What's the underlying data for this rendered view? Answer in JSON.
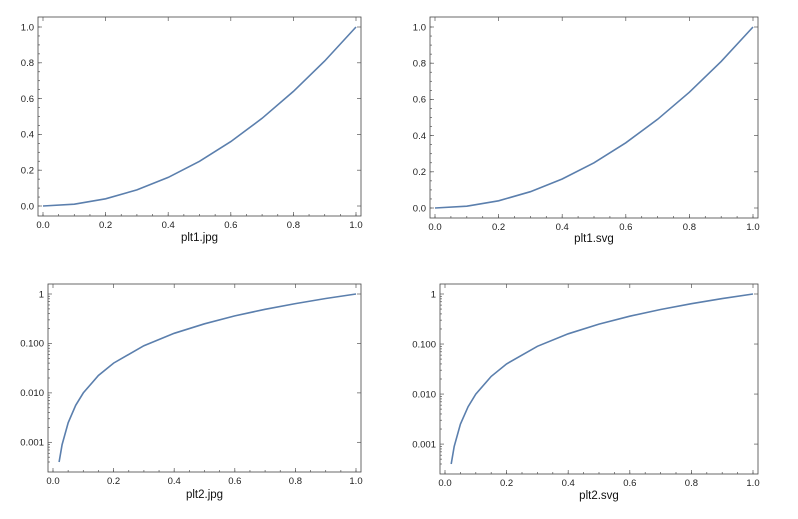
{
  "accent_color": "#5b7fad",
  "chart_data": [
    {
      "type": "line",
      "caption": "plt1.jpg",
      "title": "",
      "xlabel": "",
      "ylabel": "",
      "yscale": "linear",
      "xlim": [
        0,
        1
      ],
      "ylim": [
        0,
        1
      ],
      "xticks": [
        "0.0",
        "0.2",
        "0.4",
        "0.6",
        "0.8",
        "1.0"
      ],
      "yticks": [
        "0.0",
        "0.2",
        "0.4",
        "0.6",
        "0.8",
        "1.0"
      ],
      "series": [
        {
          "x": [
            0,
            0.1,
            0.2,
            0.3,
            0.4,
            0.5,
            0.6,
            0.7,
            0.8,
            0.9,
            1.0
          ],
          "y": [
            0,
            0.01,
            0.04,
            0.09,
            0.16,
            0.25,
            0.36,
            0.49,
            0.64,
            0.81,
            1.0
          ]
        }
      ]
    },
    {
      "type": "line",
      "caption": "plt1.svg",
      "title": "",
      "xlabel": "",
      "ylabel": "",
      "yscale": "linear",
      "xlim": [
        0,
        1
      ],
      "ylim": [
        0,
        1
      ],
      "xticks": [
        "0.0",
        "0.2",
        "0.4",
        "0.6",
        "0.8",
        "1.0"
      ],
      "yticks": [
        "0.0",
        "0.2",
        "0.4",
        "0.6",
        "0.8",
        "1.0"
      ],
      "series": [
        {
          "x": [
            0,
            0.1,
            0.2,
            0.3,
            0.4,
            0.5,
            0.6,
            0.7,
            0.8,
            0.9,
            1.0
          ],
          "y": [
            0,
            0.01,
            0.04,
            0.09,
            0.16,
            0.25,
            0.36,
            0.49,
            0.64,
            0.81,
            1.0
          ]
        }
      ]
    },
    {
      "type": "line",
      "caption": "plt2.jpg",
      "title": "",
      "xlabel": "",
      "ylabel": "",
      "yscale": "log",
      "xlim": [
        0,
        1
      ],
      "ylim": [
        0.0004,
        1
      ],
      "xticks": [
        "0.0",
        "0.2",
        "0.4",
        "0.6",
        "0.8",
        "1.0"
      ],
      "yticks": [
        "0.001",
        "0.010",
        "0.100",
        "1"
      ],
      "series": [
        {
          "x": [
            0.02,
            0.03,
            0.05,
            0.075,
            0.1,
            0.15,
            0.2,
            0.3,
            0.4,
            0.5,
            0.6,
            0.7,
            0.8,
            0.9,
            1.0
          ],
          "y": [
            0.0004,
            0.0009,
            0.0025,
            0.0056,
            0.01,
            0.0225,
            0.04,
            0.09,
            0.16,
            0.25,
            0.36,
            0.49,
            0.64,
            0.81,
            1.0
          ]
        }
      ]
    },
    {
      "type": "line",
      "caption": "plt2.svg",
      "title": "",
      "xlabel": "",
      "ylabel": "",
      "yscale": "log",
      "xlim": [
        0,
        1
      ],
      "ylim": [
        0.0004,
        1
      ],
      "xticks": [
        "0.0",
        "0.2",
        "0.4",
        "0.6",
        "0.8",
        "1.0"
      ],
      "yticks": [
        "0.001",
        "0.010",
        "0.100",
        "1"
      ],
      "series": [
        {
          "x": [
            0.02,
            0.03,
            0.05,
            0.075,
            0.1,
            0.15,
            0.2,
            0.3,
            0.4,
            0.5,
            0.6,
            0.7,
            0.8,
            0.9,
            1.0
          ],
          "y": [
            0.0004,
            0.0009,
            0.0025,
            0.0056,
            0.01,
            0.0225,
            0.04,
            0.09,
            0.16,
            0.25,
            0.36,
            0.49,
            0.64,
            0.81,
            1.0
          ]
        }
      ]
    }
  ]
}
